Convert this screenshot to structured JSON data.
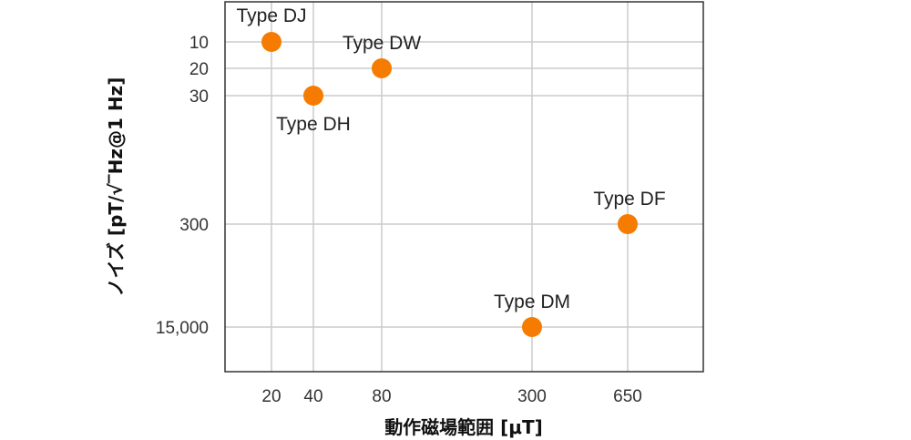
{
  "chart_data": {
    "type": "scatter",
    "xlabel": "動作磁場範囲 [μT]",
    "ylabel": "ノイズ [pT/√‾Hz@1 Hz]",
    "x_ticks": [
      "20",
      "40",
      "80",
      "300",
      "650"
    ],
    "y_ticks": [
      "10",
      "20",
      "30",
      "300",
      "15,000"
    ],
    "grid": true,
    "marker_color": "#F57C00",
    "points": [
      {
        "label": "Type DJ",
        "x": 20,
        "y": 10
      },
      {
        "label": "Type DH",
        "x": 40,
        "y": 30
      },
      {
        "label": "Type DW",
        "x": 80,
        "y": 20
      },
      {
        "label": "Type DM",
        "x": 300,
        "y": 15000
      },
      {
        "label": "Type DF",
        "x": 650,
        "y": 300
      }
    ]
  }
}
